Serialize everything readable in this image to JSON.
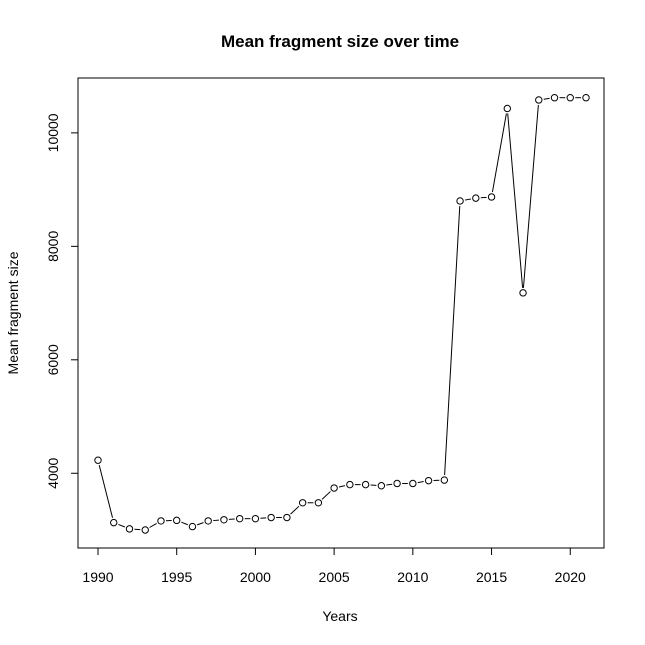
{
  "chart_data": {
    "type": "line",
    "title": "Mean fragment size over time",
    "xlabel": "Years",
    "ylabel": "Mean fragment size",
    "x_ticks": [
      1990,
      1995,
      2000,
      2005,
      2010,
      2015,
      2020
    ],
    "y_ticks": [
      4000,
      6000,
      8000,
      10000
    ],
    "xlim": [
      1990,
      2021
    ],
    "ylim": [
      3000,
      10650
    ],
    "grid": false,
    "marker": "open-circle",
    "series": [
      {
        "x": [
          1990,
          1991,
          1992,
          1993,
          1994,
          1995,
          1996,
          1997,
          1998,
          1999,
          2000,
          2001,
          2002,
          2003,
          2004,
          2005,
          2006,
          2007,
          2008,
          2009,
          2010,
          2011,
          2012,
          2013,
          2014,
          2015,
          2016,
          2017,
          2018,
          2019,
          2020,
          2021
        ],
        "y": [
          4230,
          3130,
          3020,
          3000,
          3160,
          3170,
          3060,
          3160,
          3180,
          3200,
          3200,
          3220,
          3220,
          3480,
          3480,
          3740,
          3800,
          3800,
          3780,
          3820,
          3820,
          3870,
          3880,
          8800,
          8850,
          8870,
          10430,
          7180,
          10580,
          10620,
          10620,
          10620
        ]
      }
    ]
  }
}
